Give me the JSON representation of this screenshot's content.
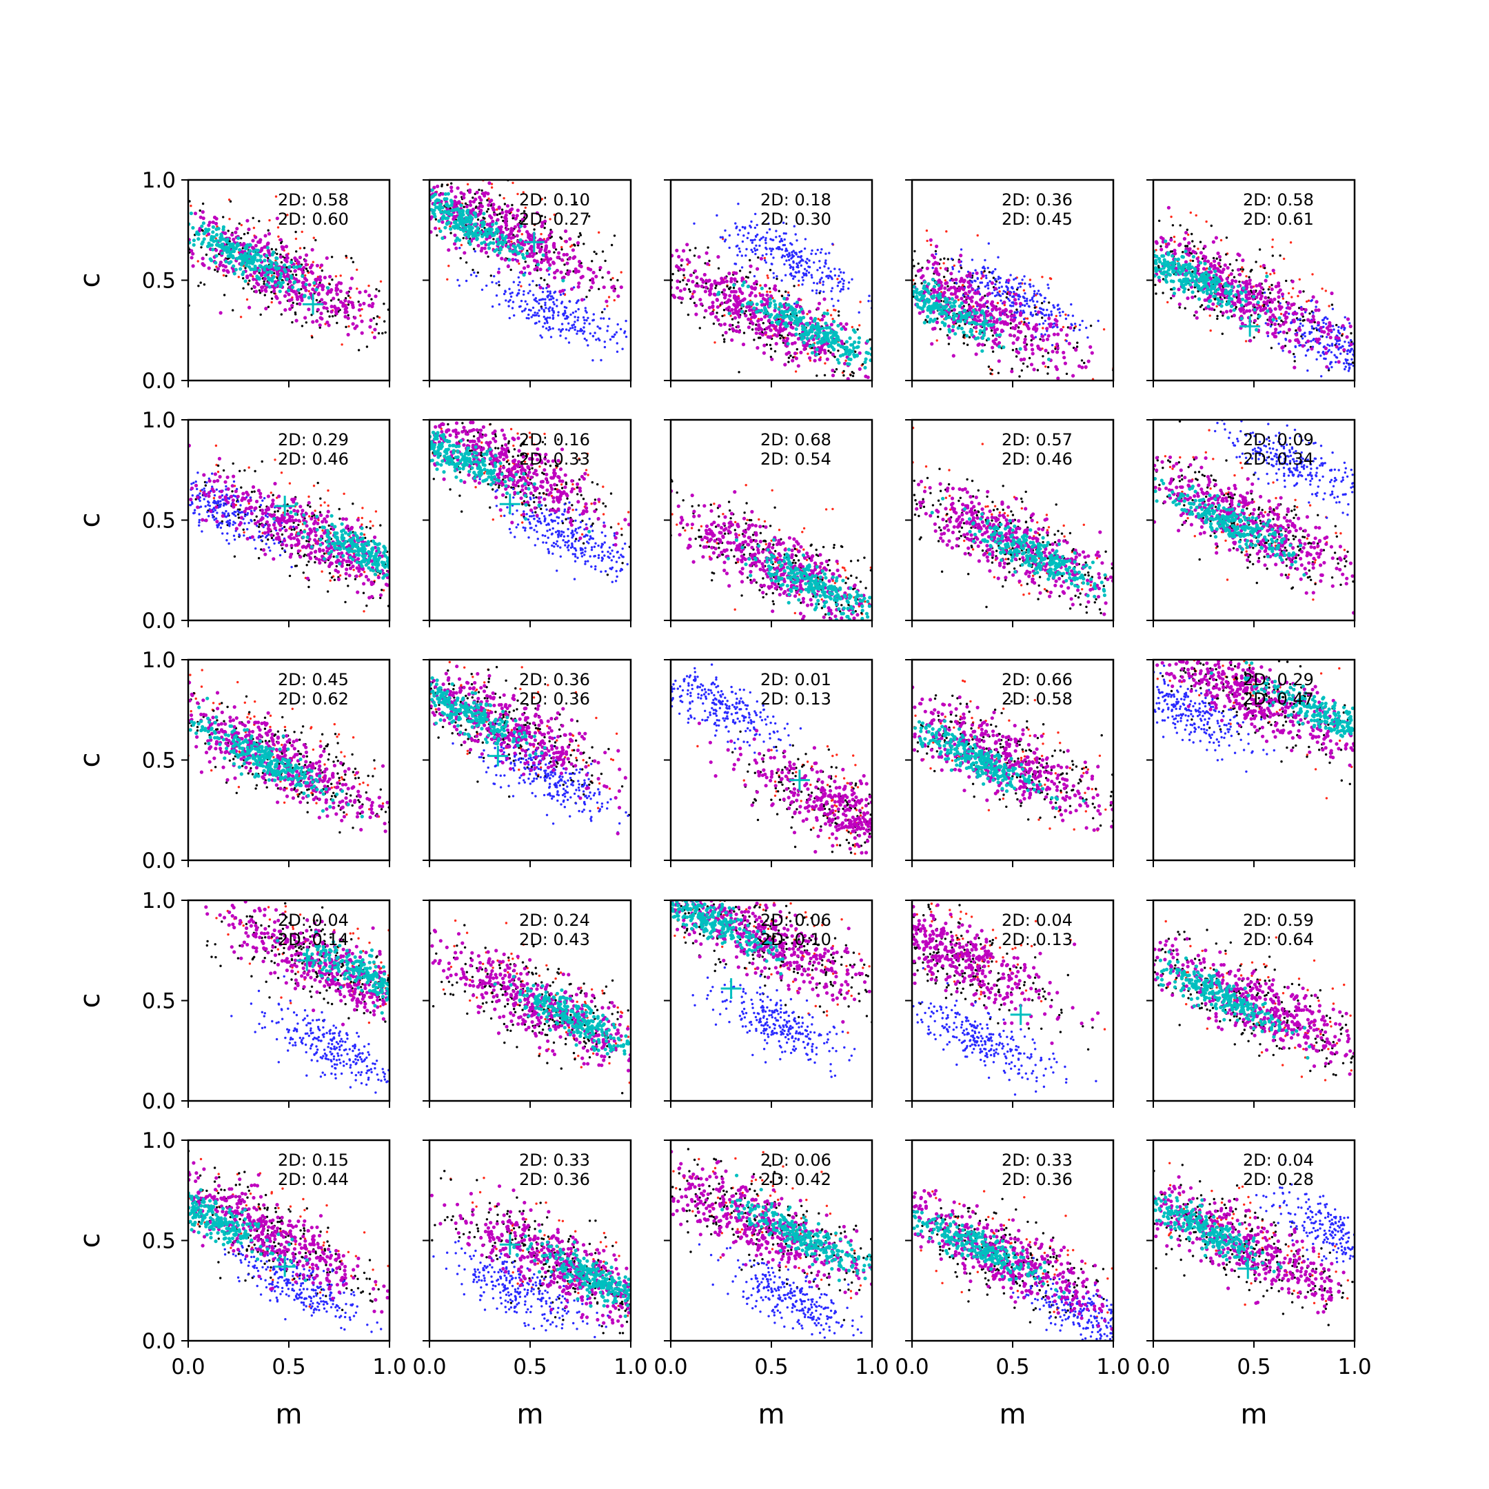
{
  "chart_data": {
    "type": "scatter",
    "layout": {
      "rows": 5,
      "cols": 5
    },
    "xlabel": "m",
    "ylabel": "c",
    "xlim": [
      0.0,
      1.0
    ],
    "ylim": [
      0.0,
      1.0
    ],
    "xticks": [
      "0.0",
      "0.5",
      "1.0"
    ],
    "yticks": [
      "0.0",
      "0.5",
      "1.0"
    ],
    "grid": false,
    "colors": {
      "red": "#ff2a1a",
      "black": "#000000",
      "blue": "#2a2aff",
      "magenta": "#bf00bf",
      "cyan": "#00bfbf",
      "marker": "#00bfbf"
    },
    "panels": [
      {
        "labels": [
          "2D: 0.58",
          "2D: 0.60"
        ],
        "marker": [
          0.62,
          0.38
        ],
        "cyan": [
          0.25,
          0.63
        ],
        "magenta": [
          0.45,
          0.53
        ],
        "blue": null
      },
      {
        "labels": [
          "2D: 0.10",
          "2D: 0.27"
        ],
        "marker": [
          0.52,
          0.69
        ],
        "cyan": [
          0.15,
          0.8
        ],
        "magenta": [
          0.35,
          0.75
        ],
        "blue": [
          0.6,
          0.35
        ]
      },
      {
        "labels": [
          "2D: 0.18",
          "2D: 0.30"
        ],
        "marker": null,
        "cyan": [
          0.7,
          0.25
        ],
        "magenta": [
          0.45,
          0.33
        ],
        "blue": [
          0.6,
          0.6
        ]
      },
      {
        "labels": [
          "2D: 0.36",
          "2D: 0.45"
        ],
        "marker": [
          0.36,
          0.28
        ],
        "cyan": [
          0.1,
          0.38
        ],
        "magenta": [
          0.3,
          0.36
        ],
        "blue": [
          0.5,
          0.42
        ]
      },
      {
        "labels": [
          "2D: 0.58",
          "2D: 0.61"
        ],
        "marker": [
          0.48,
          0.27
        ],
        "cyan": [
          0.18,
          0.52
        ],
        "magenta": [
          0.4,
          0.45
        ],
        "blue": [
          0.9,
          0.18
        ]
      },
      {
        "labels": [
          "2D: 0.29",
          "2D: 0.46"
        ],
        "marker": [
          0.48,
          0.57
        ],
        "cyan": [
          0.9,
          0.33
        ],
        "magenta": [
          0.6,
          0.42
        ],
        "blue": [
          0.18,
          0.55
        ]
      },
      {
        "labels": [
          "2D: 0.16",
          "2D: 0.33"
        ],
        "marker": [
          0.4,
          0.58
        ],
        "cyan": [
          0.12,
          0.82
        ],
        "magenta": [
          0.35,
          0.78
        ],
        "blue": [
          0.7,
          0.42
        ]
      },
      {
        "labels": [
          "2D: 0.68",
          "2D: 0.54"
        ],
        "marker": null,
        "cyan": [
          0.7,
          0.18
        ],
        "magenta": [
          0.55,
          0.27
        ],
        "blue": null
      },
      {
        "labels": [
          "2D: 0.57",
          "2D: 0.46"
        ],
        "marker": null,
        "cyan": [
          0.62,
          0.32
        ],
        "magenta": [
          0.5,
          0.38
        ],
        "blue": null
      },
      {
        "labels": [
          "2D: 0.09",
          "2D: 0.34"
        ],
        "marker": null,
        "cyan": [
          0.4,
          0.48
        ],
        "magenta": [
          0.45,
          0.5
        ],
        "blue": [
          0.7,
          0.78
        ]
      },
      {
        "labels": [
          "2D: 0.45",
          "2D: 0.62"
        ],
        "marker": null,
        "cyan": [
          0.35,
          0.52
        ],
        "magenta": [
          0.45,
          0.5
        ],
        "blue": null
      },
      {
        "labels": [
          "2D: 0.36",
          "2D: 0.36"
        ],
        "marker": [
          0.34,
          0.52
        ],
        "cyan": [
          0.15,
          0.75
        ],
        "magenta": [
          0.35,
          0.68
        ],
        "blue": [
          0.6,
          0.4
        ]
      },
      {
        "labels": [
          "2D: 0.01",
          "2D: 0.13"
        ],
        "marker": [
          0.64,
          0.4
        ],
        "cyan": null,
        "magenta": [
          0.92,
          0.22
        ],
        "blue": [
          0.22,
          0.78
        ]
      },
      {
        "labels": [
          "2D: 0.66",
          "2D: 0.58"
        ],
        "marker": null,
        "cyan": [
          0.3,
          0.52
        ],
        "magenta": [
          0.45,
          0.5
        ],
        "blue": null
      },
      {
        "labels": [
          "2D: 0.29",
          "2D: 0.47"
        ],
        "marker": null,
        "cyan": [
          0.85,
          0.72
        ],
        "magenta": [
          0.5,
          0.82
        ],
        "blue": [
          0.15,
          0.75
        ]
      },
      {
        "labels": [
          "2D: 0.04",
          "2D: 0.14"
        ],
        "marker": [
          0.59,
          0.7
        ],
        "cyan": [
          0.92,
          0.6
        ],
        "magenta": [
          0.7,
          0.67
        ],
        "blue": [
          0.7,
          0.27
        ]
      },
      {
        "labels": [
          "2D: 0.24",
          "2D: 0.43"
        ],
        "marker": null,
        "cyan": [
          0.75,
          0.4
        ],
        "magenta": [
          0.55,
          0.47
        ],
        "blue": null
      },
      {
        "labels": [
          "2D: 0.06",
          "2D: 0.10"
        ],
        "marker": [
          0.3,
          0.56
        ],
        "cyan": [
          0.2,
          0.9
        ],
        "magenta": [
          0.45,
          0.8
        ],
        "blue": [
          0.55,
          0.38
        ]
      },
      {
        "labels": [
          "2D: 0.04",
          "2D: 0.13"
        ],
        "marker": [
          0.54,
          0.43
        ],
        "cyan": null,
        "magenta": [
          0.15,
          0.75
        ],
        "blue": [
          0.35,
          0.3
        ]
      },
      {
        "labels": [
          "2D: 0.59",
          "2D: 0.64"
        ],
        "marker": null,
        "cyan": [
          0.35,
          0.52
        ],
        "magenta": [
          0.5,
          0.48
        ],
        "blue": null
      },
      {
        "labels": [
          "2D: 0.15",
          "2D: 0.44"
        ],
        "marker": [
          0.48,
          0.37
        ],
        "cyan": [
          0.1,
          0.62
        ],
        "magenta": [
          0.35,
          0.55
        ],
        "blue": [
          0.55,
          0.28
        ]
      },
      {
        "labels": [
          "2D: 0.33",
          "2D: 0.36"
        ],
        "marker": [
          0.4,
          0.48
        ],
        "cyan": [
          0.85,
          0.3
        ],
        "magenta": [
          0.65,
          0.38
        ],
        "blue": [
          0.45,
          0.25
        ]
      },
      {
        "labels": [
          "2D: 0.06",
          "2D: 0.42"
        ],
        "marker": null,
        "cyan": [
          0.65,
          0.52
        ],
        "magenta": [
          0.45,
          0.58
        ],
        "blue": [
          0.6,
          0.2
        ]
      },
      {
        "labels": [
          "2D: 0.33",
          "2D: 0.36"
        ],
        "marker": null,
        "cyan": [
          0.3,
          0.48
        ],
        "magenta": [
          0.45,
          0.42
        ],
        "blue": [
          0.88,
          0.12
        ]
      },
      {
        "labels": [
          "2D: 0.04",
          "2D: 0.28"
        ],
        "marker": [
          0.47,
          0.36
        ],
        "cyan": [
          0.25,
          0.55
        ],
        "magenta": [
          0.45,
          0.48
        ],
        "blue": [
          0.88,
          0.55
        ]
      }
    ]
  }
}
